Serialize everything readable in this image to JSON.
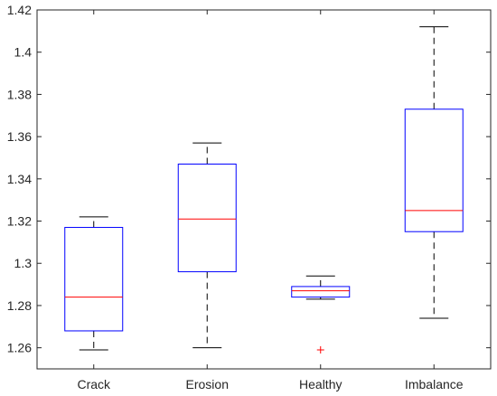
{
  "chart_data": {
    "type": "box",
    "title": "",
    "xlabel": "",
    "ylabel": "",
    "ylim": [
      1.25,
      1.42
    ],
    "yticks": [
      1.26,
      1.28,
      1.3,
      1.32,
      1.34,
      1.36,
      1.38,
      1.4,
      1.42
    ],
    "ytick_labels": [
      "1.26",
      "1.28",
      "1.3",
      "1.32",
      "1.34",
      "1.36",
      "1.38",
      "1.4",
      "1.42"
    ],
    "categories": [
      "Crack",
      "Erosion",
      "Healthy",
      "Imbalance"
    ],
    "boxes": [
      {
        "category": "Crack",
        "min": 1.259,
        "q1": 1.268,
        "median": 1.284,
        "q3": 1.317,
        "max": 1.322,
        "outliers": []
      },
      {
        "category": "Erosion",
        "min": 1.26,
        "q1": 1.296,
        "median": 1.321,
        "q3": 1.347,
        "max": 1.357,
        "outliers": []
      },
      {
        "category": "Healthy",
        "min": 1.283,
        "q1": 1.284,
        "median": 1.287,
        "q3": 1.289,
        "max": 1.294,
        "outliers": [
          1.259
        ]
      },
      {
        "category": "Imbalance",
        "min": 1.274,
        "q1": 1.315,
        "median": 1.325,
        "q3": 1.373,
        "max": 1.412,
        "outliers": []
      }
    ],
    "grid": false,
    "colors": {
      "box": "#0000ff",
      "median": "#ff0000",
      "whisker": "#000000",
      "outlier": "#ff0000",
      "axis": "#262626"
    }
  }
}
